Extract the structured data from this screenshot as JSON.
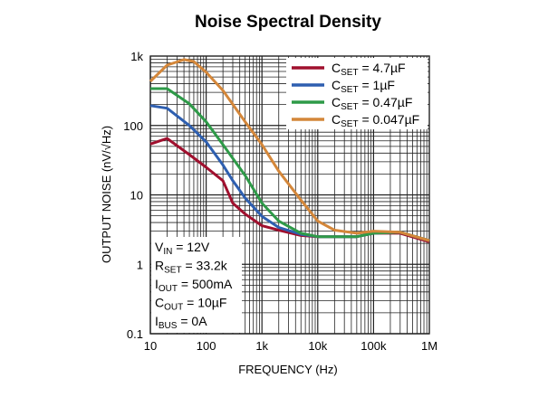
{
  "chart_data": {
    "type": "line",
    "title": "Noise Spectral Density",
    "xlabel": "FREQUENCY (Hz)",
    "ylabel": "OUTPUT NOISE (nV/√Hz)",
    "x_scale": "log",
    "y_scale": "log",
    "xlim": [
      10,
      1000000
    ],
    "ylim": [
      0.1,
      1000
    ],
    "x_ticks": [
      {
        "v": 10,
        "label": "10"
      },
      {
        "v": 100,
        "label": "100"
      },
      {
        "v": 1000,
        "label": "1k"
      },
      {
        "v": 10000,
        "label": "10k"
      },
      {
        "v": 100000,
        "label": "100k"
      },
      {
        "v": 1000000,
        "label": "1M"
      }
    ],
    "y_ticks": [
      {
        "v": 0.1,
        "label": "0.1"
      },
      {
        "v": 1,
        "label": "1"
      },
      {
        "v": 10,
        "label": "10"
      },
      {
        "v": 100,
        "label": "100"
      },
      {
        "v": 1000,
        "label": "1k"
      }
    ],
    "grid": true,
    "legend_position": "top-right",
    "series": [
      {
        "name": "CSET = 4.7µF",
        "label_main": "C",
        "label_sub": "SET",
        "label_rest": " = 4.7µF",
        "color": "#a0102e",
        "x": [
          10,
          20,
          50,
          100,
          200,
          300,
          500,
          1000,
          2000,
          5000,
          10000,
          50000,
          100000,
          300000,
          1000000
        ],
        "y": [
          54,
          65,
          38,
          25,
          16,
          7.6,
          5.3,
          3.6,
          3.1,
          2.6,
          2.5,
          2.5,
          2.8,
          2.8,
          2.1
        ]
      },
      {
        "name": "CSET = 1µF",
        "label_main": "C",
        "label_sub": "SET",
        "label_rest": " = 1µF",
        "color": "#2e5fb0",
        "x": [
          10,
          20,
          50,
          100,
          200,
          300,
          500,
          1000,
          2000,
          5000,
          10000,
          50000,
          100000,
          300000,
          1000000
        ],
        "y": [
          193,
          177,
          100,
          58,
          27,
          16,
          9,
          4.9,
          3.4,
          2.7,
          2.5,
          2.5,
          2.8,
          2.9,
          2.2
        ]
      },
      {
        "name": "CSET = 0.47µF",
        "label_main": "C",
        "label_sub": "SET",
        "label_rest": " = 0.47µF",
        "color": "#2e9a48",
        "x": [
          10,
          20,
          50,
          100,
          200,
          500,
          1000,
          2000,
          5000,
          10000,
          50000,
          100000,
          300000,
          1000000
        ],
        "y": [
          340,
          340,
          205,
          113,
          53,
          19,
          7.6,
          4.2,
          2.8,
          2.5,
          2.5,
          2.8,
          2.9,
          2.2
        ]
      },
      {
        "name": "CSET = 0.047µF",
        "label_main": "C",
        "label_sub": "SET",
        "label_rest": " = 0.047µF",
        "color": "#d4873a",
        "x": [
          10,
          20,
          40,
          60,
          100,
          200,
          500,
          1000,
          2000,
          5000,
          10000,
          20000,
          50000,
          100000,
          300000,
          1000000
        ],
        "y": [
          433,
          740,
          890,
          835,
          585,
          320,
          113,
          53,
          22,
          8.4,
          4.2,
          3.1,
          2.8,
          3.0,
          2.9,
          2.2
        ]
      }
    ],
    "annotations": [
      {
        "main": "V",
        "sub": "IN",
        "rest": " = 12V"
      },
      {
        "main": "R",
        "sub": "SET",
        "rest": " = 33.2k"
      },
      {
        "main": "I",
        "sub": "OUT",
        "rest": " = 500mA"
      },
      {
        "main": "C",
        "sub": "OUT",
        "rest": " = 10µF"
      },
      {
        "main": "I",
        "sub": "BUS",
        "rest": " = 0A"
      }
    ]
  }
}
